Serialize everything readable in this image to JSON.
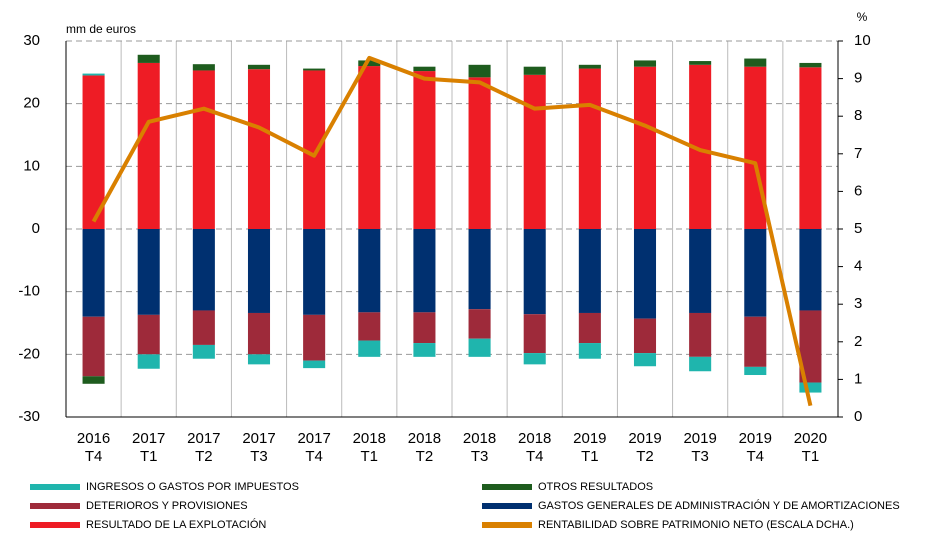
{
  "chart_data": {
    "type": "bar",
    "ylabel": "mm de euros",
    "y2label": "%",
    "categories": [
      [
        "2016",
        "T4"
      ],
      [
        "2017",
        "T1"
      ],
      [
        "2017",
        "T2"
      ],
      [
        "2017",
        "T3"
      ],
      [
        "2017",
        "T4"
      ],
      [
        "2018",
        "T1"
      ],
      [
        "2018",
        "T2"
      ],
      [
        "2018",
        "T3"
      ],
      [
        "2018",
        "T4"
      ],
      [
        "2019",
        "T1"
      ],
      [
        "2019",
        "T2"
      ],
      [
        "2019",
        "T3"
      ],
      [
        "2019",
        "T4"
      ],
      [
        "2020",
        "T1"
      ]
    ],
    "stacked": true,
    "series": [
      {
        "name": "INGRESOS O GASTOS POR IMPUESTOS",
        "color": "#1fb5ad",
        "values": [
          0.3,
          -2.3,
          -2.2,
          -1.6,
          -1.2,
          -2.6,
          -2.2,
          -2.9,
          -1.8,
          -2.5,
          -2.1,
          -2.3,
          -1.3,
          -1.6
        ]
      },
      {
        "name": "OTROS RESULTADOS",
        "color": "#1e5c1e",
        "values": [
          -1.2,
          1.3,
          1.0,
          0.7,
          0.3,
          0.9,
          0.7,
          2.0,
          1.3,
          0.6,
          1.0,
          0.6,
          1.3,
          0.7
        ]
      },
      {
        "name": "DETERIOROS Y PROVISIONES",
        "color": "#9e2a3a",
        "values": [
          -9.5,
          -6.3,
          -5.5,
          -6.6,
          -7.3,
          -4.5,
          -4.9,
          -4.7,
          -6.2,
          -4.8,
          -5.5,
          -7.0,
          -8.0,
          -11.5
        ]
      },
      {
        "name": "GASTOS GENERALES DE ADMINISTRACIÓN Y DE AMORTIZACIONES",
        "color": "#003070",
        "values": [
          -14,
          -13.7,
          -13,
          -13.4,
          -13.7,
          -13.3,
          -13.3,
          -12.8,
          -13.6,
          -13.4,
          -14.3,
          -13.4,
          -14,
          -13
        ]
      },
      {
        "name": "RESULTADO DE LA EXPLOTACIÓN",
        "color": "#ee1c25",
        "values": [
          24.5,
          26.5,
          25.3,
          25.5,
          25.3,
          26,
          25.2,
          24.2,
          24.6,
          25.6,
          25.9,
          26.2,
          25.9,
          25.8
        ]
      },
      {
        "name": "RENTABILIDAD SOBRE PATRIMONIO NETO (ESCALA DCHA.)",
        "color": "#d98000",
        "type": "line",
        "axis": "y2",
        "values": [
          5.2,
          7.85,
          8.2,
          7.7,
          6.95,
          9.55,
          9.0,
          8.9,
          8.2,
          8.3,
          7.75,
          7.1,
          6.75,
          0.3
        ]
      }
    ],
    "ylim": [
      -30,
      30
    ],
    "yticks": [
      -30,
      -20,
      -10,
      0,
      10,
      20,
      30
    ],
    "y2lim": [
      0,
      10
    ],
    "y2ticks": [
      0,
      1,
      2,
      3,
      4,
      5,
      6,
      7,
      8,
      9,
      10
    ],
    "grid": true
  }
}
